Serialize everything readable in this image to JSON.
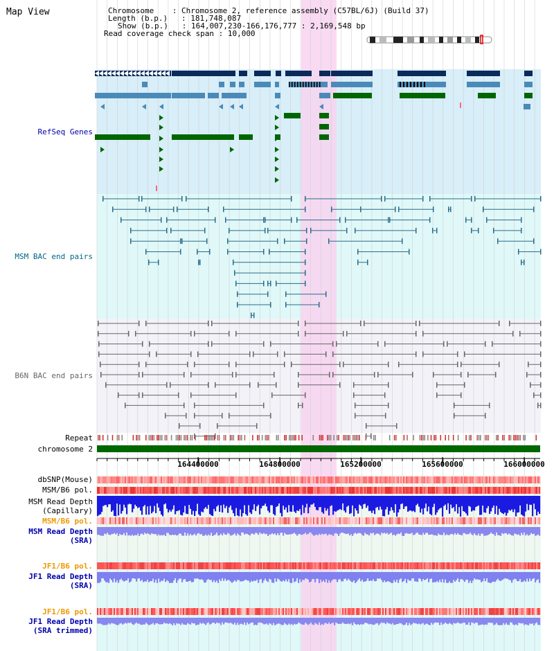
{
  "app": {
    "title": "Map View"
  },
  "info": {
    "chromosome_key": "Chromosome    ",
    "chromosome_val": ": Chromosome 2, reference assembly (C57BL/6J) (Build 37)",
    "length_key": "Length (b.p.) ",
    "length_val": ": 181,748,087",
    "show_key": "Show (b.p.) ",
    "show_val": ": 164,007,230-166,176,777 : 2,169,548 bp",
    "coverage_key": "Read coverage check span",
    "coverage_val": ": 10,000"
  },
  "tracks": {
    "refseq": {
      "label": "RefSeq Genes",
      "color": "#0000aa"
    },
    "msm_bac": {
      "label": "MSM BAC end pairs",
      "color": "#006688"
    },
    "b6n_bac": {
      "label": "B6N BAC end pairs",
      "color": "#666666"
    },
    "repeat": {
      "label": "Repeat"
    },
    "chromosome": {
      "label": "chromosome 2"
    },
    "dbsnp": {
      "label": "dbSNP(Mouse)"
    },
    "msm_b6_pol": {
      "label": "MSM/B6 pol."
    },
    "msm_read_depth_cap": {
      "label1": "MSM Read Depth",
      "label2": "(Capillary)"
    },
    "msm_b6_pol2": {
      "label": "MSM/B6 pol."
    },
    "msm_read_depth_sra": {
      "label1": "MSM Read Depth",
      "label2": "(SRA)"
    },
    "jf1_b6_pol": {
      "label": "JF1/B6 pol."
    },
    "jf1_read_depth": {
      "label1": "JF1 Read Depth",
      "label2": "(SRA)"
    },
    "jf1_b6_pol2": {
      "label": "JF1/B6 pol."
    },
    "jf1_read_depth_trim": {
      "label1": "JF1 Read Depth",
      "label2": "(SRA trimmed)"
    }
  },
  "axis": {
    "ticks": [
      "164400000",
      "164800000",
      "165200000",
      "165600000",
      "166000000"
    ]
  },
  "colors": {
    "highlight": "#f8d8f0",
    "refseq_bg": "#d8eef8",
    "msm_bg": "#e0f8f8",
    "b6n_bg": "#f0f0f8",
    "gene_dark": "#0a2a5a",
    "gene_mid": "#4a8ab8",
    "gene_green": "#006600",
    "chrom_green": "#006600"
  }
}
